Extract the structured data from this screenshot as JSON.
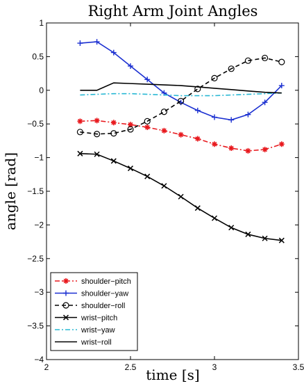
{
  "chart_data": {
    "type": "line",
    "title": "Right Arm Joint Angles",
    "xlabel": "time [s]",
    "ylabel": "angle [rad]",
    "xlim": [
      2,
      3.5
    ],
    "ylim": [
      -4,
      1
    ],
    "x_ticks": [
      2,
      2.5,
      3,
      3.5
    ],
    "x_tick_labels": [
      "2",
      "2.5",
      "3",
      "3.5"
    ],
    "y_ticks": [
      1,
      0.5,
      0,
      -0.5,
      -1,
      -1.5,
      -2,
      -2.5,
      -3,
      -3.5,
      -4
    ],
    "y_tick_labels": [
      "1",
      "0.5",
      "0",
      "−0.5",
      "−1",
      "−1.5",
      "−2",
      "−2.5",
      "−3",
      "−3.5",
      "−4"
    ],
    "grid": false,
    "legend_position": "bottom-left",
    "x": [
      2.2,
      2.3,
      2.4,
      2.5,
      2.6,
      2.7,
      2.8,
      2.9,
      3.0,
      3.1,
      3.2,
      3.3,
      3.4
    ],
    "series": [
      {
        "name": "shoulder−pitch",
        "color": "#e8191e",
        "dash": "dashdot",
        "marker": "star",
        "values": [
          -0.46,
          -0.45,
          -0.48,
          -0.51,
          -0.55,
          -0.6,
          -0.66,
          -0.72,
          -0.8,
          -0.86,
          -0.9,
          -0.88,
          -0.8
        ]
      },
      {
        "name": "shoulder−yaw",
        "color": "#1a2fd1",
        "dash": "solid",
        "marker": "plus",
        "values": [
          0.7,
          0.72,
          0.56,
          0.36,
          0.16,
          -0.04,
          -0.18,
          -0.3,
          -0.4,
          -0.44,
          -0.36,
          -0.18,
          0.07
        ]
      },
      {
        "name": "shoulder−roll",
        "color": "#000000",
        "dash": "dashed",
        "marker": "circle",
        "values": [
          -0.62,
          -0.65,
          -0.64,
          -0.58,
          -0.46,
          -0.32,
          -0.16,
          0.02,
          0.18,
          0.32,
          0.44,
          0.48,
          0.42
        ]
      },
      {
        "name": "wrist−pitch",
        "color": "#000000",
        "dash": "solid",
        "marker": "x",
        "values": [
          -0.94,
          -0.95,
          -1.05,
          -1.16,
          -1.28,
          -1.42,
          -1.58,
          -1.75,
          -1.9,
          -2.04,
          -2.14,
          -2.2,
          -2.23
        ]
      },
      {
        "name": "wrist−yaw",
        "color": "#29b8d4",
        "dash": "dashdot",
        "marker": "none",
        "values": [
          -0.07,
          -0.06,
          -0.05,
          -0.05,
          -0.06,
          -0.07,
          -0.08,
          -0.08,
          -0.08,
          -0.07,
          -0.06,
          -0.05,
          -0.04
        ]
      },
      {
        "name": "wrist−roll",
        "color": "#000000",
        "dash": "solid",
        "marker": "none",
        "values": [
          0.0,
          0.0,
          0.11,
          0.1,
          0.09,
          0.08,
          0.07,
          0.05,
          0.03,
          0.01,
          -0.01,
          -0.03,
          -0.04
        ]
      }
    ]
  }
}
